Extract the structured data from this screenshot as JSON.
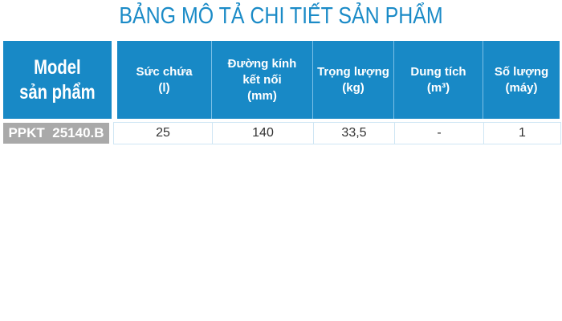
{
  "title": "BẢNG MÔ TẢ CHI TIẾT SẢN PHẨM",
  "model_header": [
    "Model",
    "sản phẩm"
  ],
  "columns": [
    {
      "lines": [
        "Sức chứa",
        "(l)"
      ]
    },
    {
      "lines": [
        "Đường kính",
        "kết nối",
        "(mm)"
      ]
    },
    {
      "lines": [
        "Trọng lượng",
        "(kg)"
      ]
    },
    {
      "lines": [
        "Dung tích",
        "(m³)"
      ]
    },
    {
      "lines": [
        "Số lượng",
        "(máy)"
      ]
    }
  ],
  "rows": [
    {
      "model": "PPKT  25140.B",
      "values": [
        "25",
        "140",
        "33,5",
        "-",
        "1"
      ]
    }
  ],
  "colors": {
    "header_blue": "#1889c6",
    "model_gray": "#a9a9a9"
  }
}
